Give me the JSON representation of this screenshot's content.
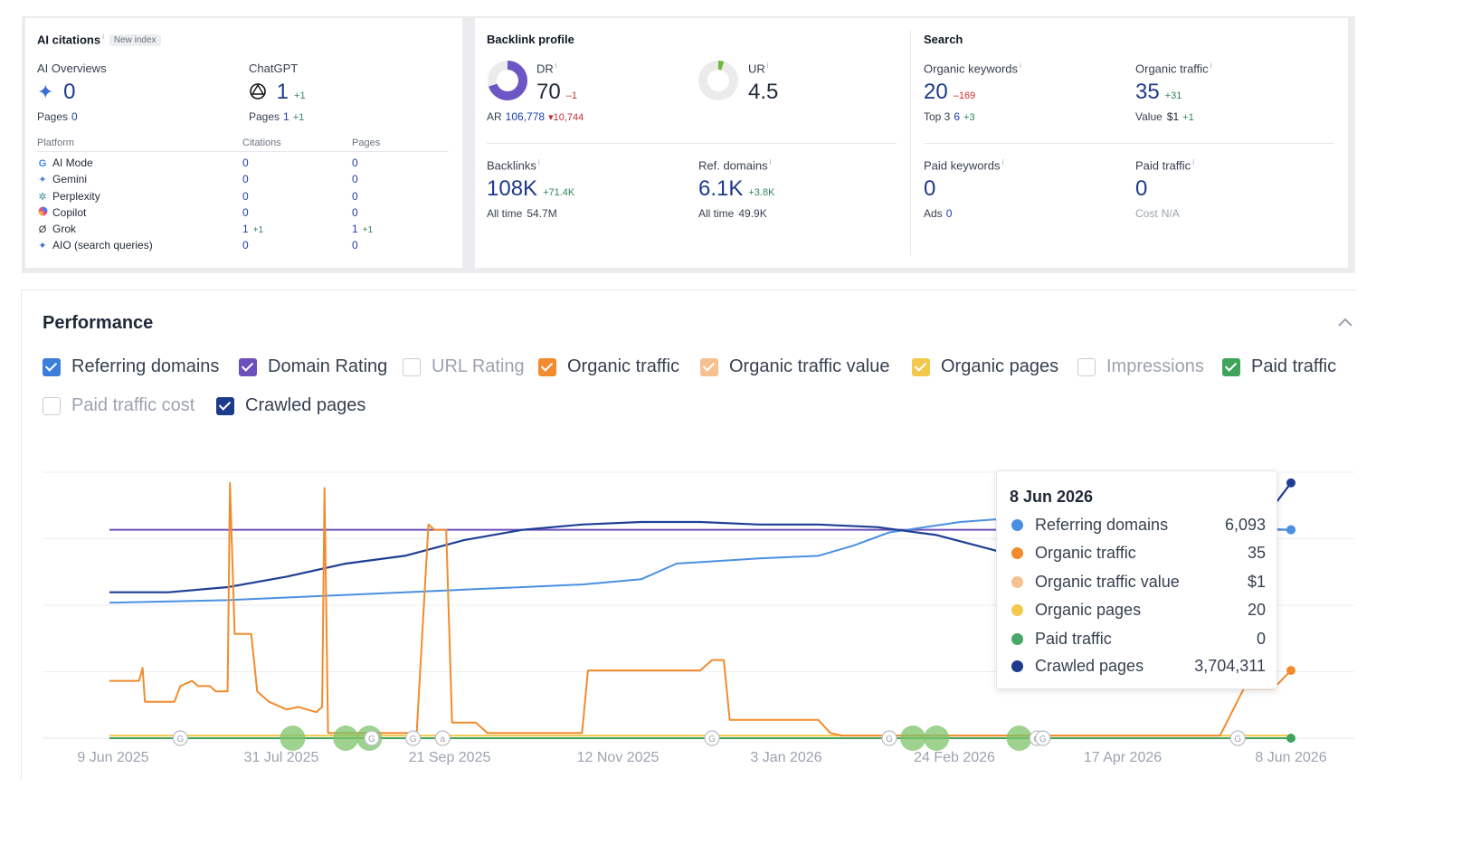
{
  "ai": {
    "title": "AI citations",
    "info": "i",
    "badge": "New index",
    "overviews_label": "AI Overviews",
    "overviews_value": "0",
    "overviews_pages_label": "Pages",
    "overviews_pages_value": "0",
    "chatgpt_label": "ChatGPT",
    "chatgpt_value": "1",
    "chatgpt_delta": "+1",
    "chatgpt_pages_label": "Pages",
    "chatgpt_pages_value": "1",
    "chatgpt_pages_delta": "+1",
    "table_headers": [
      "Platform",
      "Citations",
      "Pages"
    ],
    "platforms": [
      {
        "name": "AI Mode",
        "icon": "google-icon",
        "citations": "0",
        "citations_delta": "",
        "pages": "0",
        "pages_delta": ""
      },
      {
        "name": "Gemini",
        "icon": "gemini-icon",
        "citations": "0",
        "citations_delta": "",
        "pages": "0",
        "pages_delta": ""
      },
      {
        "name": "Perplexity",
        "icon": "perplexity-icon",
        "citations": "0",
        "citations_delta": "",
        "pages": "0",
        "pages_delta": ""
      },
      {
        "name": "Copilot",
        "icon": "copilot-icon",
        "citations": "0",
        "citations_delta": "",
        "pages": "0",
        "pages_delta": ""
      },
      {
        "name": "Grok",
        "icon": "grok-icon",
        "citations": "1",
        "citations_delta": "+1",
        "pages": "1",
        "pages_delta": "+1"
      },
      {
        "name": "AIO (search queries)",
        "icon": "sparkle-icon",
        "citations": "0",
        "citations_delta": "",
        "pages": "0",
        "pages_delta": ""
      }
    ]
  },
  "backlink": {
    "title": "Backlink profile",
    "dr_label": "DR",
    "dr_value": "70",
    "dr_delta": "–1",
    "dr_fraction": 0.7,
    "ar_label": "AR",
    "ar_value": "106,778",
    "ar_delta": "▾10,744",
    "ur_label": "UR",
    "ur_value": "4.5",
    "ur_fraction": 0.045,
    "backlinks_label": "Backlinks",
    "backlinks_value": "108K",
    "backlinks_delta": "+71.4K",
    "backlinks_alltime_label": "All time",
    "backlinks_alltime_value": "54.7M",
    "refdomains_label": "Ref. domains",
    "refdomains_value": "6.1K",
    "refdomains_delta": "+3.8K",
    "refdomains_alltime_label": "All time",
    "refdomains_alltime_value": "49.9K"
  },
  "search": {
    "title": "Search",
    "org_kw_label": "Organic keywords",
    "org_kw_value": "20",
    "org_kw_delta": "–169",
    "top3_label": "Top 3",
    "top3_value": "6",
    "top3_delta": "+3",
    "org_traffic_label": "Organic traffic",
    "org_traffic_value": "35",
    "org_traffic_delta": "+31",
    "value_label": "Value",
    "value_value": "$1",
    "value_delta": "+1",
    "paid_kw_label": "Paid keywords",
    "paid_kw_value": "0",
    "ads_label": "Ads",
    "ads_value": "0",
    "paid_traffic_label": "Paid traffic",
    "paid_traffic_value": "0",
    "cost_label": "Cost",
    "cost_value": "N/A"
  },
  "performance": {
    "title": "Performance",
    "toggles": [
      {
        "label": "Referring domains",
        "checked": true,
        "color": "#3b7dd8"
      },
      {
        "label": "Domain Rating",
        "checked": true,
        "color": "#6b4fbb"
      },
      {
        "label": "URL Rating",
        "checked": false,
        "color": "#c8ccd2"
      },
      {
        "label": "Organic traffic",
        "checked": true,
        "color": "#f28b2d"
      },
      {
        "label": "Organic traffic value",
        "checked": true,
        "color": "#f5c28f"
      },
      {
        "label": "Organic pages",
        "checked": true,
        "color": "#f2c94c"
      },
      {
        "label": "Impressions",
        "checked": false,
        "color": "#c8ccd2"
      },
      {
        "label": "Paid traffic",
        "checked": true,
        "color": "#3fa35b"
      },
      {
        "label": "Paid traffic cost",
        "checked": false,
        "color": "#c8ccd2"
      },
      {
        "label": "Crawled pages",
        "checked": true,
        "color": "#1e3a8a"
      }
    ]
  },
  "tooltip": {
    "date": "8 Jun 2026",
    "rows": [
      {
        "label": "Referring domains",
        "value": "6,093",
        "color": "#4a90e2"
      },
      {
        "label": "Organic traffic",
        "value": "35",
        "color": "#f28b2d"
      },
      {
        "label": "Organic traffic value",
        "value": "$1",
        "color": "#f5c28f"
      },
      {
        "label": "Organic pages",
        "value": "20",
        "color": "#f2c94c"
      },
      {
        "label": "Paid traffic",
        "value": "0",
        "color": "#48a868"
      },
      {
        "label": "Crawled pages",
        "value": "3,704,311",
        "color": "#1e3a8a"
      }
    ]
  },
  "chart_data": {
    "type": "line",
    "x_ticks": [
      "9 Jun 2025",
      "31 Jul 2025",
      "21 Sep 2025",
      "12 Nov 2025",
      "3 Jan 2026",
      "24 Feb 2026",
      "17 Apr 2026",
      "8 Jun 2026"
    ],
    "series": [
      {
        "name": "Crawled pages",
        "color": "#1f3f94",
        "points": [
          [
            0,
            0.56
          ],
          [
            0.05,
            0.56
          ],
          [
            0.1,
            0.58
          ],
          [
            0.15,
            0.62
          ],
          [
            0.2,
            0.67
          ],
          [
            0.25,
            0.7
          ],
          [
            0.3,
            0.76
          ],
          [
            0.35,
            0.8
          ],
          [
            0.4,
            0.82
          ],
          [
            0.45,
            0.83
          ],
          [
            0.5,
            0.83
          ],
          [
            0.55,
            0.82
          ],
          [
            0.6,
            0.82
          ],
          [
            0.65,
            0.81
          ],
          [
            0.7,
            0.78
          ],
          [
            0.75,
            0.72
          ],
          [
            0.8,
            0.6
          ],
          [
            0.83,
            0.58
          ],
          [
            0.86,
            0.57
          ],
          [
            0.9,
            0.59
          ],
          [
            0.95,
            0.63
          ],
          [
            0.98,
            0.86
          ],
          [
            1,
            0.98
          ]
        ]
      },
      {
        "name": "Referring domains",
        "color": "#4a90e2",
        "points": [
          [
            0,
            0.52
          ],
          [
            0.1,
            0.53
          ],
          [
            0.2,
            0.55
          ],
          [
            0.3,
            0.57
          ],
          [
            0.35,
            0.58
          ],
          [
            0.4,
            0.59
          ],
          [
            0.45,
            0.61
          ],
          [
            0.48,
            0.67
          ],
          [
            0.55,
            0.69
          ],
          [
            0.6,
            0.7
          ],
          [
            0.63,
            0.74
          ],
          [
            0.66,
            0.79
          ],
          [
            0.69,
            0.81
          ],
          [
            0.72,
            0.83
          ],
          [
            0.75,
            0.84
          ],
          [
            0.78,
            0.83
          ],
          [
            0.85,
            0.81
          ],
          [
            0.9,
            0.81
          ],
          [
            0.95,
            0.81
          ],
          [
            1,
            0.8
          ]
        ]
      },
      {
        "name": "Domain Rating",
        "color": "#6b4fbb",
        "points": [
          [
            0,
            0.8
          ],
          [
            1,
            0.8
          ]
        ]
      },
      {
        "name": "Organic traffic",
        "color": "#f28b2d",
        "points": [
          [
            0,
            0.22
          ],
          [
            0.025,
            0.22
          ],
          [
            0.028,
            0.27
          ],
          [
            0.03,
            0.14
          ],
          [
            0.055,
            0.14
          ],
          [
            0.06,
            0.2
          ],
          [
            0.07,
            0.22
          ],
          [
            0.075,
            0.2
          ],
          [
            0.085,
            0.2
          ],
          [
            0.09,
            0.18
          ],
          [
            0.1,
            0.18
          ],
          [
            0.102,
            0.98
          ],
          [
            0.106,
            0.4
          ],
          [
            0.12,
            0.4
          ],
          [
            0.125,
            0.18
          ],
          [
            0.135,
            0.14
          ],
          [
            0.15,
            0.11
          ],
          [
            0.16,
            0.12
          ],
          [
            0.175,
            0.1
          ],
          [
            0.18,
            0.12
          ],
          [
            0.182,
            0.96
          ],
          [
            0.185,
            0.02
          ],
          [
            0.2,
            0.02
          ],
          [
            0.26,
            0.02
          ],
          [
            0.27,
            0.82
          ],
          [
            0.275,
            0.8
          ],
          [
            0.285,
            0.8
          ],
          [
            0.29,
            0.06
          ],
          [
            0.31,
            0.06
          ],
          [
            0.32,
            0.02
          ],
          [
            0.4,
            0.02
          ],
          [
            0.405,
            0.26
          ],
          [
            0.5,
            0.26
          ],
          [
            0.51,
            0.3
          ],
          [
            0.52,
            0.3
          ],
          [
            0.525,
            0.07
          ],
          [
            0.6,
            0.07
          ],
          [
            0.61,
            0.02
          ],
          [
            0.62,
            0.01
          ],
          [
            0.75,
            0.01
          ],
          [
            0.9,
            0.01
          ],
          [
            0.94,
            0.01
          ],
          [
            0.95,
            0.1
          ],
          [
            0.96,
            0.19
          ],
          [
            0.985,
            0.19
          ],
          [
            1,
            0.26
          ]
        ]
      },
      {
        "name": "Organic pages",
        "color": "#f2c94c",
        "points": [
          [
            0,
            0.01
          ],
          [
            1,
            0.01
          ]
        ]
      },
      {
        "name": "Paid traffic",
        "color": "#3fa35b",
        "points": [
          [
            0,
            0
          ],
          [
            1,
            0
          ]
        ]
      }
    ],
    "y_gridlines": 4,
    "annotations": [
      "G",
      "G",
      "G",
      "a",
      "G",
      "G",
      "G",
      "G",
      "G"
    ]
  }
}
